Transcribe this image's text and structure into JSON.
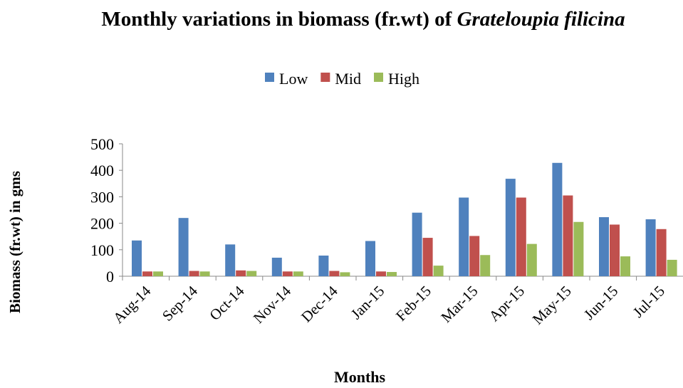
{
  "chart_data": {
    "type": "bar",
    "title": "Monthly variations in biomass (fr.wt) of",
    "title_italic": "Grateloupia filicina",
    "x_label": "Months",
    "y_label": "Biomass (fr.wt) in gms",
    "categories": [
      "Aug-14",
      "Sep-14",
      "Oct-14",
      "Nov-14",
      "Dec-14",
      "Jan-15",
      "Feb-15",
      "Mar-15",
      "Apr-15",
      "May-15",
      "Jun-15",
      "Jul-15"
    ],
    "series": [
      {
        "name": "Low",
        "color": "#4f81bd",
        "values": [
          135,
          220,
          120,
          70,
          78,
          133,
          240,
          297,
          368,
          428,
          223,
          215
        ]
      },
      {
        "name": "Mid",
        "color": "#c0504d",
        "values": [
          18,
          20,
          22,
          18,
          20,
          18,
          145,
          152,
          297,
          305,
          195,
          178
        ]
      },
      {
        "name": "High",
        "color": "#9bbb59",
        "values": [
          18,
          18,
          20,
          18,
          15,
          16,
          40,
          80,
          122,
          205,
          75,
          62
        ]
      }
    ],
    "ylim": [
      0,
      500
    ],
    "yticks": [
      0,
      100,
      200,
      300,
      400,
      500
    ],
    "legend": "top"
  }
}
